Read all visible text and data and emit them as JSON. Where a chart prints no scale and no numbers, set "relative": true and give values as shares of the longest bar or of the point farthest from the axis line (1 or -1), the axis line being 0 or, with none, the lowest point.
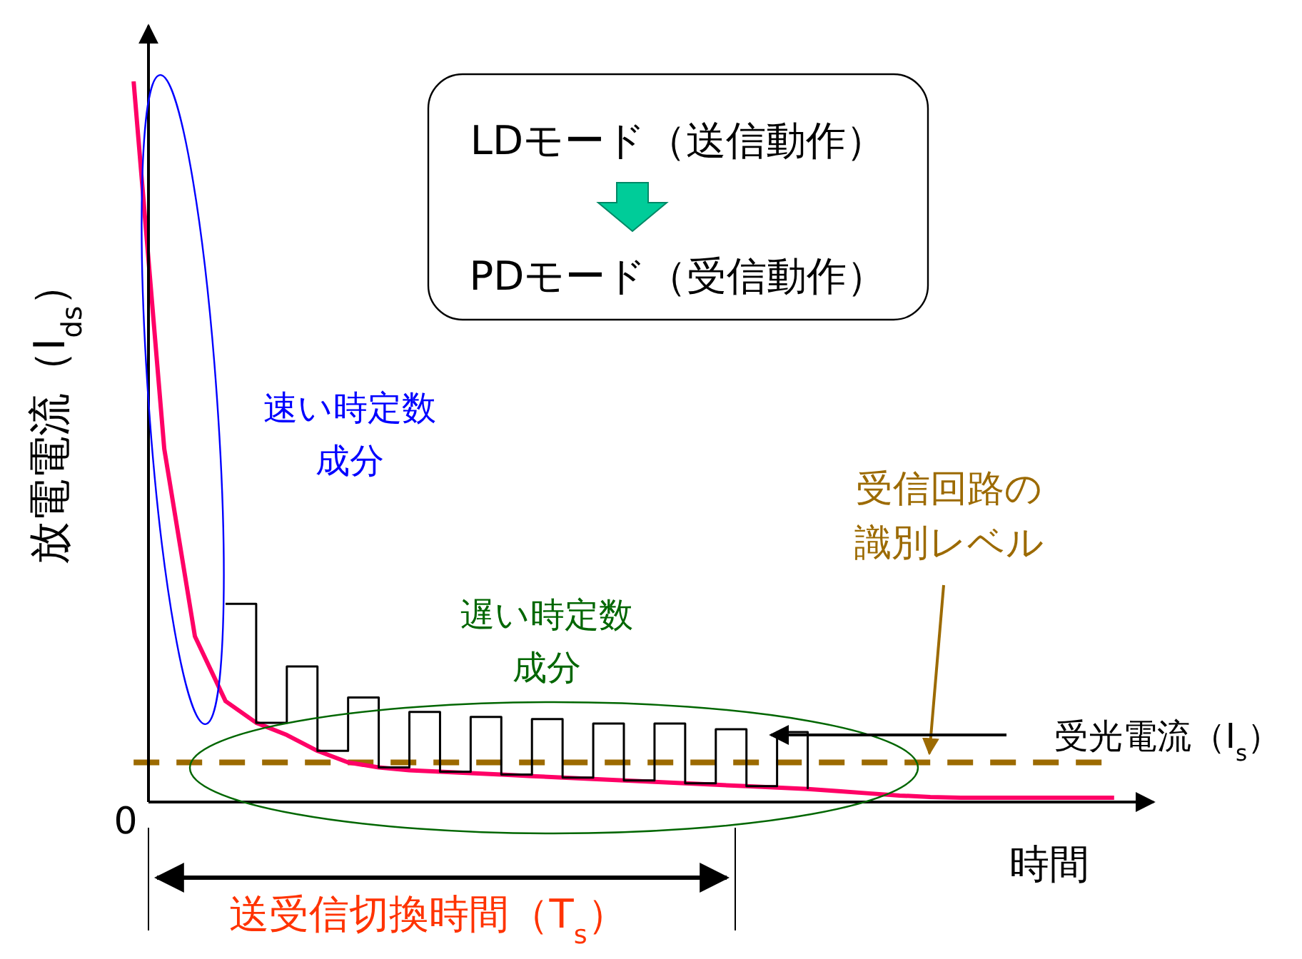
{
  "chart_data": {
    "type": "line",
    "relative": true,
    "xlabel": "時間",
    "ylabel": "放電電流（I$_{ds}$）",
    "categories": [
      null,
      null,
      null,
      null,
      null,
      null,
      null,
      null,
      null,
      null,
      null,
      null,
      null,
      null,
      null,
      null,
      null,
      null,
      null,
      null,
      null,
      null,
      null,
      null,
      null,
      null,
      null,
      null,
      null,
      null,
      null,
      null,
      null
    ],
    "series": [
      {
        "color": "#ff0066",
        "values": [
          1.0,
          0.49,
          0.23,
          0.14,
          0.11,
          0.093,
          0.071,
          0.055,
          0.048,
          0.044,
          0.042,
          0.04,
          0.038,
          0.036,
          0.034,
          0.032,
          0.03,
          0.028,
          0.026,
          0.024,
          0.022,
          0.02,
          0.018,
          0.015,
          0.012,
          0.009,
          0.007,
          0.006,
          0.006,
          0.006,
          0.006,
          0.006,
          0.006
        ]
      },
      {
        "type": "step",
        "name": "受光電流（I$_{s}$）",
        "color": "#000000",
        "values": [
          null,
          null,
          null,
          0.275,
          0.11,
          0.188,
          0.071,
          0.145,
          0.048,
          0.125,
          0.042,
          0.118,
          0.038,
          0.115,
          0.034,
          0.109,
          0.03,
          0.109,
          0.026,
          0.101,
          0.022,
          0.097,
          0.018,
          null,
          null,
          null,
          null,
          null,
          null,
          null,
          null,
          null,
          null
        ]
      }
    ],
    "ref_lines": [
      {
        "axis": "y",
        "value": 0.055,
        "label": "受信回路の識別レベル",
        "color": "#9c6a00",
        "line_style": "dashed"
      }
    ],
    "annotations": [
      "0",
      "速い時定数成分",
      "遅い時定数成分",
      "LDモード（送信動作）",
      "PDモード（受信動作）",
      "送受信切換時間（T$_{s}$）"
    ]
  }
}
